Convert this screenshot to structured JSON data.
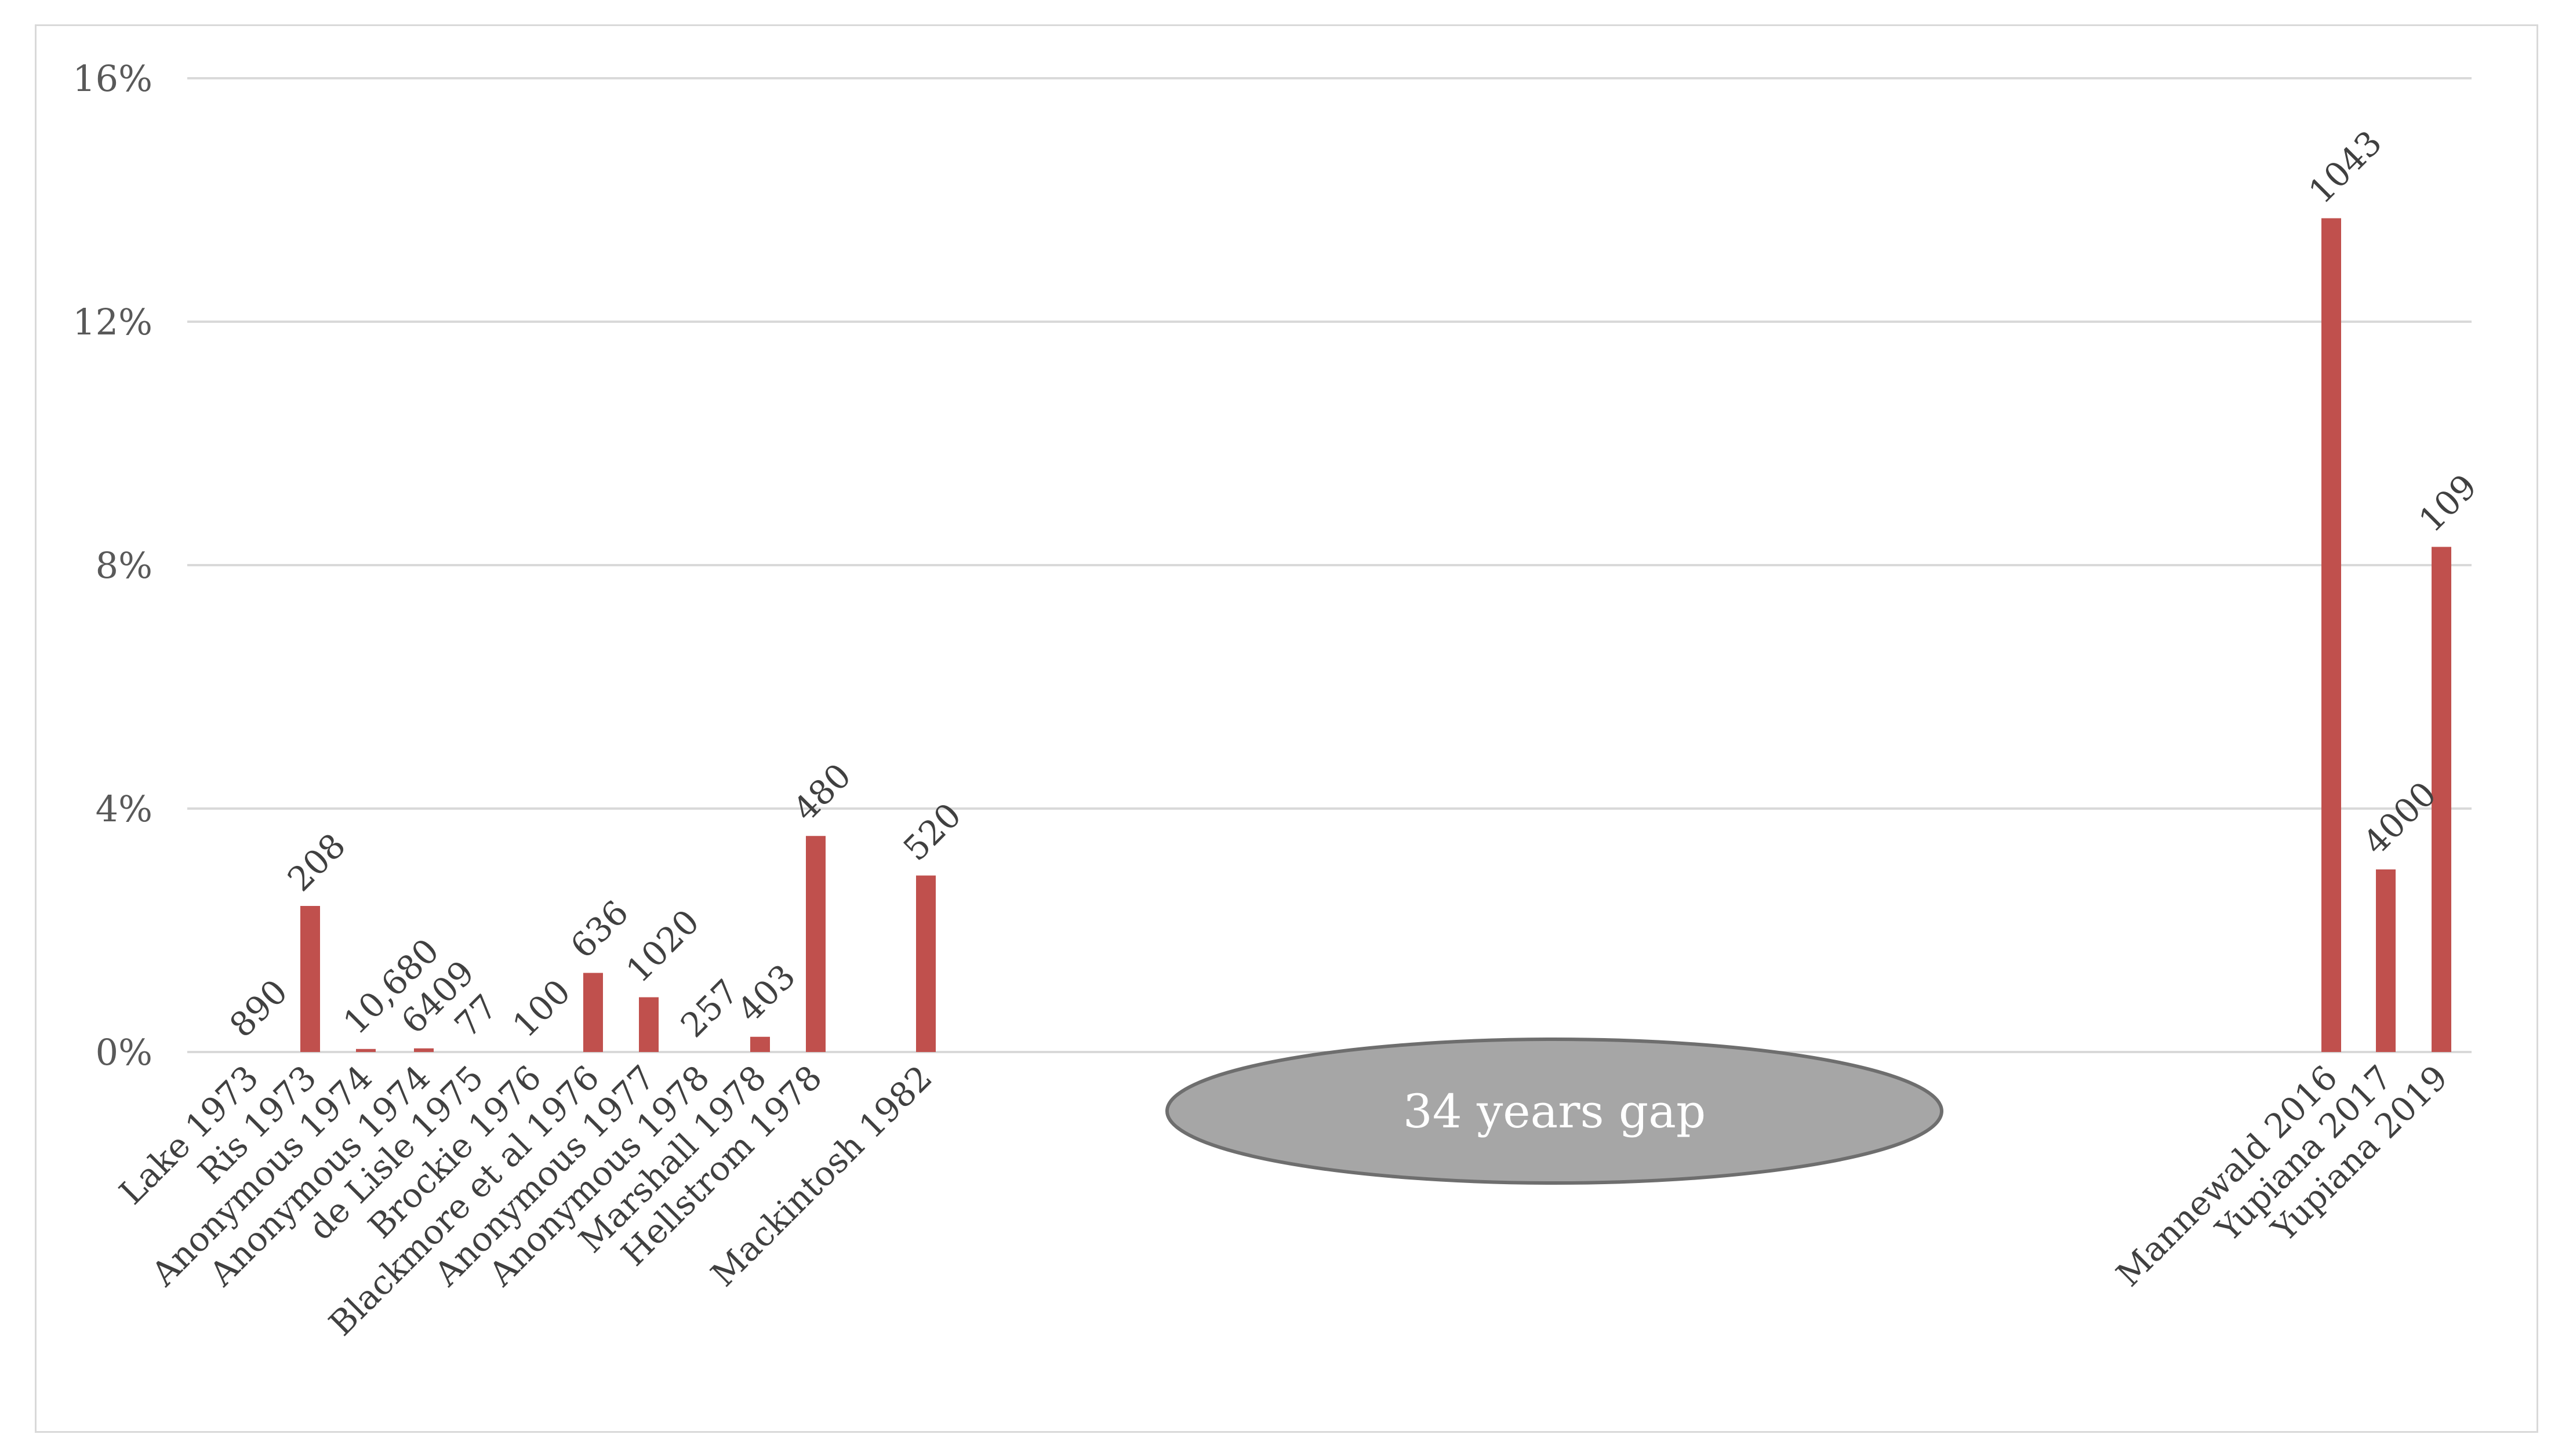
{
  "chart_data": {
    "type": "bar",
    "title": "",
    "xlabel": "",
    "ylabel": "",
    "ylim": [
      0,
      16
    ],
    "y_ticks": [
      "0%",
      "4%",
      "8%",
      "12%",
      "16%"
    ],
    "y_tick_values": [
      0,
      4,
      8,
      12,
      16
    ],
    "grid": true,
    "bar_color": "#c0504d",
    "categories": [
      "Lake 1973",
      "Ris 1973",
      "Anonymous 1974",
      "Anonymous 1974",
      "de Lisle 1975",
      "Brockie 1976",
      "Blackmore et al 1976",
      "Anonymous 1977",
      "Anonymous 1978",
      "Marshall 1978",
      "Hellstrom 1978",
      "Mackintosh 1982",
      "Mannewald 2016",
      "Yupiana 2017",
      "Yupiana 2019"
    ],
    "values": [
      0,
      2.4,
      0.05,
      0.06,
      0,
      0,
      1.3,
      0.9,
      0,
      0.25,
      3.55,
      2.9,
      13.7,
      3.0,
      8.3
    ],
    "data_labels": [
      "890",
      "208",
      "10,680",
      "6409",
      "77",
      "100",
      "636",
      "1020",
      "257",
      "403",
      "480",
      "520",
      "1043",
      "4000",
      "109"
    ],
    "annotation": {
      "text": "34 years gap",
      "fill": "#a6a6a6",
      "stroke": "#6e6e6e"
    }
  }
}
